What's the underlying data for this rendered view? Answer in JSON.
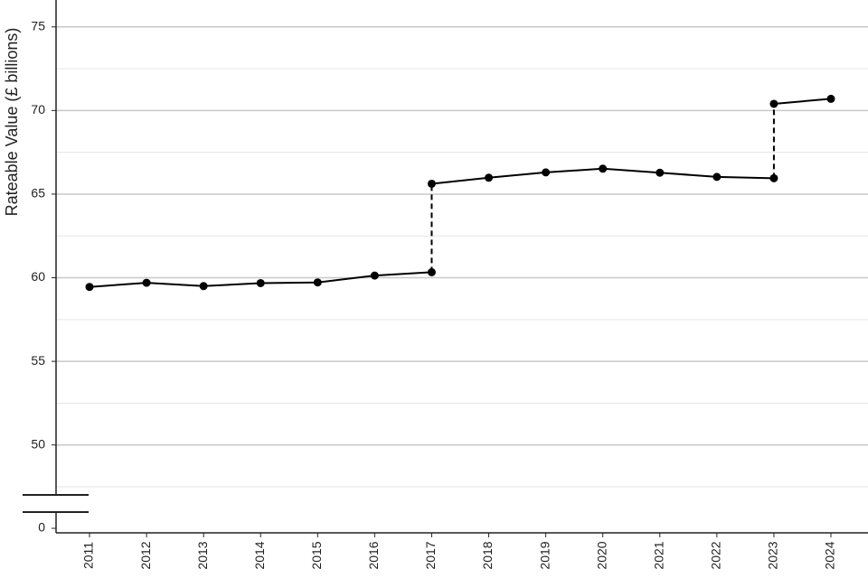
{
  "chart_data": {
    "type": "line",
    "y_label": "Rateable Value (£ billions)",
    "categories": [
      "2011",
      "2012",
      "2013",
      "2014",
      "2015",
      "2016",
      "2017",
      "2018",
      "2019",
      "2020",
      "2021",
      "2022",
      "2023",
      "2024"
    ],
    "series": [
      {
        "color": "#000000",
        "values": [
          59.45,
          59.7,
          59.5,
          59.68,
          59.72,
          60.13,
          60.33,
          null,
          null,
          null,
          null,
          null,
          null,
          null
        ]
      },
      {
        "color": "#000000",
        "values": [
          null,
          null,
          null,
          null,
          null,
          null,
          65.62,
          65.98,
          66.3,
          66.52,
          66.28,
          66.03,
          65.95,
          null
        ]
      },
      {
        "color": "#000000",
        "values": [
          null,
          null,
          null,
          null,
          null,
          null,
          null,
          null,
          null,
          null,
          null,
          null,
          70.4,
          70.7
        ]
      }
    ],
    "ylim": [
      47.5,
      76.5
    ],
    "yticks": [
      0,
      50,
      55,
      60,
      65,
      70,
      75
    ],
    "minor_yticks": [
      47.5,
      52.5,
      57.5,
      62.5,
      67.5,
      72.5
    ],
    "axis_break": true,
    "grid": true,
    "connect_series": "dashed"
  }
}
